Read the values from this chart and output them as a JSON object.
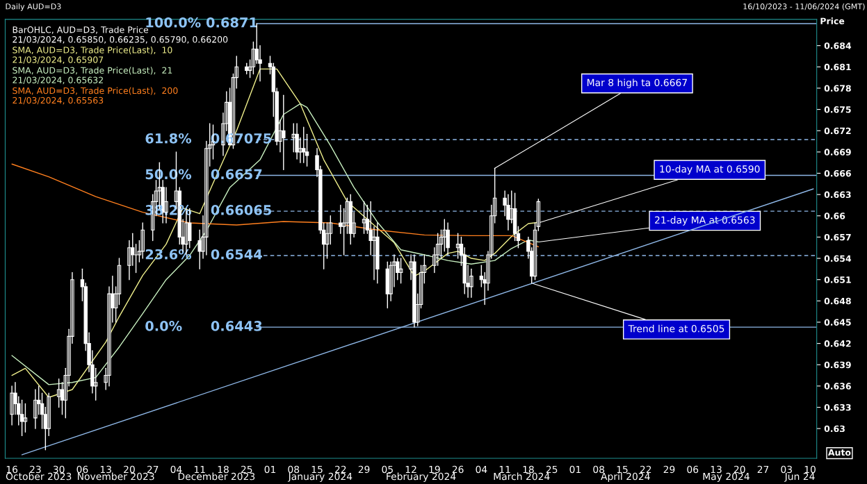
{
  "chart_data": {
    "type": "candlestick",
    "title": "Daily AUD=D3",
    "subtitle": "16/10/2023 - 11/06/2024 (GMT)",
    "ylabel": "Price",
    "legend_title": "BarOHLC, AUD=D3, Trade Price\n21/03/2024, 0.65850, 0.66235, 0.65790, 0.66200",
    "color": "#ffffff",
    "x": [
      "2023-10-16",
      "2023-10-17",
      "2023-10-18",
      "2023-10-19",
      "2023-10-20",
      "2023-10-23",
      "2023-10-24",
      "2023-10-25",
      "2023-10-26",
      "2023-10-27",
      "2023-10-30",
      "2023-10-31",
      "2023-11-01",
      "2023-11-02",
      "2023-11-03",
      "2023-11-06",
      "2023-11-07",
      "2023-11-08",
      "2023-11-09",
      "2023-11-10",
      "2023-11-13",
      "2023-11-14",
      "2023-11-15",
      "2023-11-16",
      "2023-11-17",
      "2023-11-20",
      "2023-11-21",
      "2023-11-22",
      "2023-11-23",
      "2023-11-24",
      "2023-11-27",
      "2023-11-28",
      "2023-11-29",
      "2023-11-30",
      "2023-12-01",
      "2023-12-04",
      "2023-12-05",
      "2023-12-06",
      "2023-12-07",
      "2023-12-08",
      "2023-12-11",
      "2023-12-12",
      "2023-12-13",
      "2023-12-14",
      "2023-12-15",
      "2023-12-18",
      "2023-12-19",
      "2023-12-20",
      "2023-12-21",
      "2023-12-22",
      "2023-12-25",
      "2023-12-26",
      "2023-12-27",
      "2023-12-28",
      "2023-12-29",
      "2024-01-01",
      "2024-01-02",
      "2024-01-03",
      "2024-01-04",
      "2024-01-05",
      "2024-01-08",
      "2024-01-09",
      "2024-01-10",
      "2024-01-11",
      "2024-01-12",
      "2024-01-15",
      "2024-01-16",
      "2024-01-17",
      "2024-01-18",
      "2024-01-19",
      "2024-01-22",
      "2024-01-23",
      "2024-01-24",
      "2024-01-25",
      "2024-01-26",
      "2024-01-29",
      "2024-01-30",
      "2024-01-31",
      "2024-02-01",
      "2024-02-02",
      "2024-02-05",
      "2024-02-06",
      "2024-02-07",
      "2024-02-08",
      "2024-02-09",
      "2024-02-12",
      "2024-02-13",
      "2024-02-14",
      "2024-02-15",
      "2024-02-16",
      "2024-02-19",
      "2024-02-20",
      "2024-02-21",
      "2024-02-22",
      "2024-02-23",
      "2024-02-26",
      "2024-02-27",
      "2024-02-28",
      "2024-02-29",
      "2024-03-01",
      "2024-03-04",
      "2024-03-05",
      "2024-03-06",
      "2024-03-07",
      "2024-03-08",
      "2024-03-11",
      "2024-03-12",
      "2024-03-13",
      "2024-03-14",
      "2024-03-15",
      "2024-03-18",
      "2024-03-19",
      "2024-03-20",
      "2024-03-21"
    ],
    "ohlc": [
      [
        0.632,
        0.636,
        0.6305,
        0.635
      ],
      [
        0.635,
        0.6365,
        0.632,
        0.6335
      ],
      [
        0.6335,
        0.6345,
        0.6305,
        0.632
      ],
      [
        0.632,
        0.634,
        0.629,
        0.631
      ],
      [
        0.631,
        0.6335,
        0.6295,
        0.6315
      ],
      [
        0.6315,
        0.6355,
        0.63,
        0.634
      ],
      [
        0.634,
        0.636,
        0.632,
        0.6335
      ],
      [
        0.6335,
        0.635,
        0.63,
        0.632
      ],
      [
        0.632,
        0.633,
        0.627,
        0.63
      ],
      [
        0.63,
        0.635,
        0.629,
        0.6345
      ],
      [
        0.6345,
        0.637,
        0.633,
        0.6355
      ],
      [
        0.6355,
        0.6365,
        0.632,
        0.634
      ],
      [
        0.634,
        0.6385,
        0.6315,
        0.6375
      ],
      [
        0.6375,
        0.644,
        0.636,
        0.643
      ],
      [
        0.643,
        0.652,
        0.642,
        0.651
      ],
      [
        0.651,
        0.6525,
        0.648,
        0.65
      ],
      [
        0.65,
        0.6505,
        0.641,
        0.642
      ],
      [
        0.642,
        0.6435,
        0.638,
        0.639
      ],
      [
        0.639,
        0.641,
        0.635,
        0.636
      ],
      [
        0.636,
        0.6385,
        0.634,
        0.6365
      ],
      [
        0.6365,
        0.6385,
        0.6355,
        0.6375
      ],
      [
        0.6375,
        0.65,
        0.636,
        0.649
      ],
      [
        0.649,
        0.6515,
        0.645,
        0.647
      ],
      [
        0.647,
        0.65,
        0.645,
        0.649
      ],
      [
        0.649,
        0.654,
        0.6475,
        0.653
      ],
      [
        0.653,
        0.6565,
        0.651,
        0.6555
      ],
      [
        0.6555,
        0.6575,
        0.653,
        0.6545
      ],
      [
        0.6545,
        0.656,
        0.652,
        0.6545
      ],
      [
        0.6545,
        0.6565,
        0.6535,
        0.655
      ],
      [
        0.655,
        0.659,
        0.654,
        0.658
      ],
      [
        0.658,
        0.663,
        0.6565,
        0.662
      ],
      [
        0.662,
        0.665,
        0.66,
        0.6635
      ],
      [
        0.6635,
        0.6675,
        0.661,
        0.664
      ],
      [
        0.664,
        0.665,
        0.659,
        0.6605
      ],
      [
        0.6605,
        0.664,
        0.659,
        0.662
      ],
      [
        0.662,
        0.669,
        0.661,
        0.6635
      ],
      [
        0.6635,
        0.664,
        0.656,
        0.657
      ],
      [
        0.657,
        0.6595,
        0.655,
        0.656
      ],
      [
        0.656,
        0.661,
        0.6545,
        0.659
      ],
      [
        0.659,
        0.661,
        0.6555,
        0.6565
      ],
      [
        0.6565,
        0.658,
        0.6525,
        0.655
      ],
      [
        0.655,
        0.66,
        0.654,
        0.657
      ],
      [
        0.657,
        0.6705,
        0.6545,
        0.6695
      ],
      [
        0.6695,
        0.673,
        0.667,
        0.67
      ],
      [
        0.67,
        0.6728,
        0.668,
        0.6705
      ],
      [
        0.67,
        0.6745,
        0.6685,
        0.673
      ],
      [
        0.673,
        0.6775,
        0.672,
        0.676
      ],
      [
        0.676,
        0.678,
        0.67,
        0.67
      ],
      [
        0.67,
        0.68,
        0.6695,
        0.6795
      ],
      [
        0.6795,
        0.6825,
        0.678,
        0.681
      ],
      [
        0.681,
        0.6815,
        0.68,
        0.6805
      ],
      [
        0.6805,
        0.682,
        0.6795,
        0.681
      ],
      [
        0.681,
        0.6845,
        0.68,
        0.6835
      ],
      [
        0.6835,
        0.6871,
        0.6815,
        0.682
      ],
      [
        0.682,
        0.684,
        0.679,
        0.6815
      ],
      [
        0.6815,
        0.6825,
        0.68,
        0.681
      ],
      [
        0.681,
        0.6815,
        0.674,
        0.6775
      ],
      [
        0.6775,
        0.678,
        0.67,
        0.6705
      ],
      [
        0.6705,
        0.6735,
        0.669,
        0.672
      ],
      [
        0.672,
        0.677,
        0.6665,
        0.671
      ],
      [
        0.671,
        0.673,
        0.669,
        0.6715
      ],
      [
        0.6715,
        0.673,
        0.668,
        0.669
      ],
      [
        0.669,
        0.671,
        0.6675,
        0.6695
      ],
      [
        0.6695,
        0.6725,
        0.6675,
        0.669
      ],
      [
        0.669,
        0.6715,
        0.667,
        0.6685
      ],
      [
        0.6685,
        0.6695,
        0.6655,
        0.6665
      ],
      [
        0.6665,
        0.667,
        0.6575,
        0.658
      ],
      [
        0.658,
        0.659,
        0.6525,
        0.656
      ],
      [
        0.656,
        0.659,
        0.654,
        0.6575
      ],
      [
        0.6575,
        0.66,
        0.656,
        0.659
      ],
      [
        0.659,
        0.6615,
        0.6575,
        0.6585
      ],
      [
        0.6585,
        0.661,
        0.6545,
        0.659
      ],
      [
        0.659,
        0.6625,
        0.6575,
        0.662
      ],
      [
        0.662,
        0.663,
        0.656,
        0.6575
      ],
      [
        0.6575,
        0.6605,
        0.657,
        0.659
      ],
      [
        0.659,
        0.662,
        0.6575,
        0.6595
      ],
      [
        0.6595,
        0.6615,
        0.6575,
        0.658
      ],
      [
        0.658,
        0.662,
        0.6545,
        0.6565
      ],
      [
        0.6565,
        0.6585,
        0.651,
        0.657
      ],
      [
        0.657,
        0.659,
        0.6505,
        0.6525
      ],
      [
        0.6525,
        0.6535,
        0.647,
        0.649
      ],
      [
        0.649,
        0.6535,
        0.648,
        0.653
      ],
      [
        0.653,
        0.6545,
        0.65,
        0.6535
      ],
      [
        0.6535,
        0.654,
        0.651,
        0.652
      ],
      [
        0.652,
        0.654,
        0.6505,
        0.6525
      ],
      [
        0.6525,
        0.6545,
        0.651,
        0.6535
      ],
      [
        0.6535,
        0.6545,
        0.6443,
        0.645
      ],
      [
        0.645,
        0.649,
        0.6445,
        0.6475
      ],
      [
        0.6475,
        0.653,
        0.647,
        0.652
      ],
      [
        0.652,
        0.6545,
        0.6505,
        0.653
      ],
      [
        0.653,
        0.6555,
        0.652,
        0.6545
      ],
      [
        0.6545,
        0.6575,
        0.653,
        0.656
      ],
      [
        0.656,
        0.658,
        0.654,
        0.657
      ],
      [
        0.657,
        0.6595,
        0.655,
        0.658
      ],
      [
        0.658,
        0.659,
        0.6545,
        0.6555
      ],
      [
        0.6555,
        0.6575,
        0.654,
        0.656
      ],
      [
        0.656,
        0.657,
        0.653,
        0.6545
      ],
      [
        0.6545,
        0.6555,
        0.649,
        0.6505
      ],
      [
        0.6505,
        0.653,
        0.6485,
        0.65
      ],
      [
        0.65,
        0.6525,
        0.6485,
        0.6515
      ],
      [
        0.6515,
        0.653,
        0.65,
        0.651
      ],
      [
        0.651,
        0.652,
        0.6475,
        0.6505
      ],
      [
        0.6505,
        0.655,
        0.6495,
        0.6545
      ],
      [
        0.6545,
        0.6615,
        0.654,
        0.66
      ],
      [
        0.66,
        0.6667,
        0.659,
        0.6625
      ],
      [
        0.6625,
        0.6635,
        0.66,
        0.6615
      ],
      [
        0.6615,
        0.663,
        0.658,
        0.6595
      ],
      [
        0.6595,
        0.6635,
        0.659,
        0.661
      ],
      [
        0.661,
        0.6632,
        0.6565,
        0.6575
      ],
      [
        0.6575,
        0.6585,
        0.6555,
        0.6565
      ],
      [
        0.6565,
        0.657,
        0.654,
        0.655
      ],
      [
        0.655,
        0.6555,
        0.6505,
        0.6515
      ],
      [
        0.6515,
        0.659,
        0.651,
        0.658
      ],
      [
        0.6585,
        0.66235,
        0.6579,
        0.662
      ]
    ],
    "series": [
      {
        "type": "line",
        "name": "SMA, AUD=D3, Trade Price(Last),  10\n21/03/2024, 0.65907",
        "color": "#f0f08c",
        "x": [
          "2023-10-16",
          "2023-10-20",
          "2023-10-27",
          "2023-11-03",
          "2023-11-13",
          "2023-11-17",
          "2023-11-24",
          "2023-12-01",
          "2023-12-06",
          "2023-12-11",
          "2023-12-15",
          "2023-12-22",
          "2023-12-29",
          "2024-01-03",
          "2024-01-10",
          "2024-01-17",
          "2024-01-24",
          "2024-01-31",
          "2024-02-07",
          "2024-02-13",
          "2024-02-16",
          "2024-02-23",
          "2024-02-26",
          "2024-03-01",
          "2024-03-05",
          "2024-03-08",
          "2024-03-13",
          "2024-03-18",
          "2024-03-21"
        ],
        "values": [
          0.6375,
          0.6385,
          0.6344,
          0.6355,
          0.6422,
          0.6458,
          0.6516,
          0.656,
          0.6611,
          0.6603,
          0.6646,
          0.672,
          0.6807,
          0.6807,
          0.6758,
          0.6679,
          0.662,
          0.6591,
          0.6562,
          0.6515,
          0.6522,
          0.6547,
          0.655,
          0.654,
          0.6537,
          0.6547,
          0.6571,
          0.6589,
          0.65907
        ]
      },
      {
        "type": "line",
        "name": "SMA, AUD=D3, Trade Price(Last),  21\n21/03/2024, 0.65632",
        "color": "#c8f0c0",
        "x": [
          "2023-10-16",
          "2023-10-27",
          "2023-11-03",
          "2023-11-10",
          "2023-11-17",
          "2023-11-24",
          "2023-12-01",
          "2023-12-08",
          "2023-12-13",
          "2023-12-20",
          "2023-12-29",
          "2024-01-05",
          "2024-01-10",
          "2024-01-12",
          "2024-01-19",
          "2024-01-26",
          "2024-02-02",
          "2024-02-09",
          "2024-02-16",
          "2024-02-23",
          "2024-03-01",
          "2024-03-08",
          "2024-03-13",
          "2024-03-18",
          "2024-03-21"
        ],
        "values": [
          0.6403,
          0.6362,
          0.6365,
          0.6372,
          0.6415,
          0.6462,
          0.651,
          0.6544,
          0.6579,
          0.664,
          0.6679,
          0.6743,
          0.6758,
          0.6753,
          0.6699,
          0.664,
          0.6591,
          0.6552,
          0.6545,
          0.6537,
          0.6532,
          0.6537,
          0.6554,
          0.6566,
          0.65632
        ]
      },
      {
        "type": "line",
        "name": "SMA, AUD=D3, Trade Price(Last),  200\n21/03/2024, 0.65563",
        "color": "#ff7f1e",
        "x": [
          "2023-10-16",
          "2023-10-27",
          "2023-11-10",
          "2023-11-24",
          "2023-12-08",
          "2023-12-22",
          "2024-01-05",
          "2024-01-19",
          "2024-02-02",
          "2024-02-16",
          "2024-03-01",
          "2024-03-13",
          "2024-03-21"
        ],
        "values": [
          0.6673,
          0.6655,
          0.6627,
          0.6605,
          0.659,
          0.6587,
          0.6592,
          0.659,
          0.658,
          0.6573,
          0.6572,
          0.6572,
          0.65563
        ]
      },
      {
        "type": "line",
        "color": "#8fb8e8",
        "x": [
          "2023-10-19",
          "2024-06-11"
        ],
        "values": [
          0.6263,
          0.6638
        ]
      }
    ],
    "ref_lines": [
      {
        "axis": "y",
        "value": 0.6871,
        "label": "100.0% 0.6871",
        "line_style": "solid",
        "color": "#8fb8e8"
      },
      {
        "axis": "y",
        "value": 0.67075,
        "label": "61.8%    0.67075",
        "line_style": "dashed",
        "color": "#8fb8e8"
      },
      {
        "axis": "y",
        "value": 0.6657,
        "label": "50.0%    0.6657",
        "line_style": "solid",
        "color": "#8fb8e8"
      },
      {
        "axis": "y",
        "value": 0.66065,
        "label": "38.2%    0.66065",
        "line_style": "dashed",
        "color": "#8fb8e8"
      },
      {
        "axis": "y",
        "value": 0.6544,
        "label": "23.6%    0.6544",
        "line_style": "dashed",
        "color": "#8fb8e8"
      },
      {
        "axis": "y",
        "value": 0.6443,
        "label": "0.0%      0.6443",
        "line_style": "solid",
        "color": "#8fb8e8"
      }
    ],
    "annotations": [
      {
        "text": "Mar 8 high ta 0.6667",
        "x": "2024-03-08",
        "y": 0.6667
      },
      {
        "text": "10-day MA at 0.6590",
        "x": "2024-03-21",
        "y": 0.659
      },
      {
        "text": "21-day MA at 0.6563",
        "x": "2024-03-21",
        "y": 0.6563
      },
      {
        "text": "Trend line at 0.6505",
        "x": "2024-03-19",
        "y": 0.6505
      },
      "Auto"
    ],
    "xlim": [
      "2023-10-14",
      "2024-06-12"
    ],
    "xticks": [
      {
        "value": "2023-10-16",
        "label": "16"
      },
      {
        "value": "2023-10-23",
        "label": "23"
      },
      {
        "value": "2023-10-30",
        "label": "30"
      },
      {
        "value": "2023-11-06",
        "label": "06"
      },
      {
        "value": "2023-11-13",
        "label": "13"
      },
      {
        "value": "2023-11-20",
        "label": "20"
      },
      {
        "value": "2023-11-27",
        "label": "27"
      },
      {
        "value": "2023-12-04",
        "label": "04"
      },
      {
        "value": "2023-12-11",
        "label": "11"
      },
      {
        "value": "2023-12-18",
        "label": "18"
      },
      {
        "value": "2023-12-25",
        "label": "25"
      },
      {
        "value": "2024-01-01",
        "label": "01"
      },
      {
        "value": "2024-01-08",
        "label": "08"
      },
      {
        "value": "2024-01-15",
        "label": "15"
      },
      {
        "value": "2024-01-22",
        "label": "22"
      },
      {
        "value": "2024-01-29",
        "label": "29"
      },
      {
        "value": "2024-02-05",
        "label": "05"
      },
      {
        "value": "2024-02-12",
        "label": "12"
      },
      {
        "value": "2024-02-19",
        "label": "19"
      },
      {
        "value": "2024-02-26",
        "label": "26"
      },
      {
        "value": "2024-03-04",
        "label": "04"
      },
      {
        "value": "2024-03-11",
        "label": "11"
      },
      {
        "value": "2024-03-18",
        "label": "18"
      },
      {
        "value": "2024-03-25",
        "label": "25"
      },
      {
        "value": "2024-04-01",
        "label": "01"
      },
      {
        "value": "2024-04-08",
        "label": "08"
      },
      {
        "value": "2024-04-15",
        "label": "15"
      },
      {
        "value": "2024-04-22",
        "label": "22"
      },
      {
        "value": "2024-04-29",
        "label": "29"
      },
      {
        "value": "2024-05-06",
        "label": "06"
      },
      {
        "value": "2024-05-13",
        "label": "13"
      },
      {
        "value": "2024-05-20",
        "label": "20"
      },
      {
        "value": "2024-05-27",
        "label": "27"
      },
      {
        "value": "2024-06-03",
        "label": "03"
      },
      {
        "value": "2024-06-10",
        "label": "10"
      }
    ],
    "x2lim": [
      "2023-10-14",
      "2024-06-12"
    ],
    "x2ticks": [
      {
        "value": "2023-10-24",
        "label": "October 2023"
      },
      {
        "value": "2023-11-16",
        "label": "November 2023"
      },
      {
        "value": "2023-12-16",
        "label": "December 2023"
      },
      {
        "value": "2024-01-16",
        "label": "January 2024"
      },
      {
        "value": "2024-02-15",
        "label": "February 2024"
      },
      {
        "value": "2024-03-16",
        "label": "March 2024"
      },
      {
        "value": "2024-04-16",
        "label": "April 2024"
      },
      {
        "value": "2024-05-16",
        "label": "May 2024"
      },
      {
        "value": "2024-06-07",
        "label": "Jun 24"
      }
    ],
    "ylim": [
      0.6258,
      0.6877
    ],
    "yticks": [
      0.63,
      0.633,
      0.636,
      0.639,
      0.642,
      0.645,
      0.648,
      0.651,
      0.654,
      0.657,
      0.66,
      0.663,
      0.666,
      0.669,
      0.672,
      0.675,
      0.678,
      0.681,
      0.684
    ],
    "grid": false,
    "legend": "top left",
    "marker": "none"
  }
}
